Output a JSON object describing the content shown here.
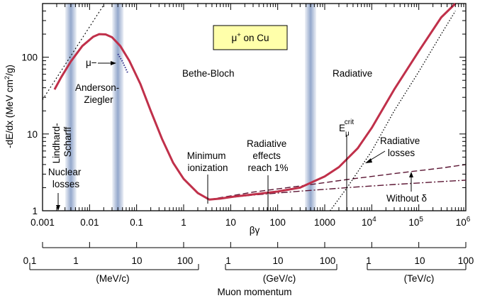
{
  "chart_data": {
    "type": "line",
    "title": "",
    "ylabel_parts": {
      "main": "-dE/dx (MeV cm",
      "sup": "2",
      "tail": "/g)"
    },
    "xlabel": "βγ",
    "xscale": "log",
    "yscale": "log",
    "xlim": [
      0.001,
      1000000
    ],
    "ylim": [
      1,
      500
    ],
    "x_ticks": [
      "0.001",
      "0.01",
      "0.1",
      "1",
      "10",
      "100",
      "1000"
    ],
    "x_ticks_exp": [
      {
        "base": "10",
        "exp": "4"
      },
      {
        "base": "10",
        "exp": "5"
      },
      {
        "base": "10",
        "exp": "6"
      }
    ],
    "y_ticks": [
      "1",
      "10",
      "100"
    ],
    "legend_box": {
      "prefix": "μ",
      "sup": "+",
      "suffix": " on Cu",
      "color": "#ffffaa"
    },
    "shaded_bands_x": [
      0.004,
      0.04,
      500
    ],
    "colors": {
      "main_curve": "#c0304a",
      "band": "#8ea3c9",
      "dashed": "#5a1432",
      "mu_minus": "#2a2a8a"
    },
    "series": [
      {
        "values": [
          [
            0.0018,
            38
          ],
          [
            0.0025,
            55
          ],
          [
            0.004,
            88
          ],
          [
            0.007,
            140
          ],
          [
            0.012,
            185
          ],
          [
            0.016,
            200
          ],
          [
            0.022,
            198
          ],
          [
            0.03,
            182
          ],
          [
            0.045,
            140
          ],
          [
            0.07,
            90
          ],
          [
            0.12,
            45
          ],
          [
            0.2,
            20
          ],
          [
            0.35,
            8.5
          ],
          [
            0.6,
            4.2
          ],
          [
            1,
            2.6
          ],
          [
            2,
            1.7
          ],
          [
            3.5,
            1.4
          ],
          [
            6,
            1.44
          ],
          [
            12,
            1.53
          ],
          [
            30,
            1.63
          ],
          [
            100,
            1.78
          ],
          [
            300,
            2
          ],
          [
            1000,
            2.8
          ],
          [
            2000,
            3.7
          ],
          [
            5000,
            6.5
          ],
          [
            10000,
            12
          ],
          [
            30000,
            38
          ],
          [
            100000,
            120
          ],
          [
            300000,
            330
          ],
          [
            600000,
            560
          ]
        ]
      },
      {
        "name": "Without δ",
        "values": [
          [
            3.5,
            1.4
          ],
          [
            30,
            1.6
          ],
          [
            300,
            1.8
          ],
          [
            3000,
            2.0
          ],
          [
            30000,
            2.2
          ],
          [
            300000,
            2.4
          ],
          [
            1000000,
            2.5
          ]
        ]
      },
      {
        "values": [
          [
            3.5,
            1.4
          ],
          [
            30,
            1.75
          ],
          [
            300,
            2.1
          ],
          [
            3000,
            2.55
          ],
          [
            30000,
            3.05
          ],
          [
            300000,
            3.6
          ],
          [
            1000000,
            4.0
          ]
        ]
      },
      {
        "name": "Radiative losses",
        "values": [
          [
            1300,
            0.9
          ],
          [
            3000,
            2
          ],
          [
            10000,
            6
          ],
          [
            30000,
            20
          ],
          [
            100000,
            65
          ],
          [
            300000,
            200
          ],
          [
            600000,
            400
          ]
        ]
      }
    ],
    "annotations": {
      "nuclear": [
        "Nuclear",
        "losses"
      ],
      "lindhard": [
        "Lindhard-",
        "Scharff"
      ],
      "anderson": [
        "Anderson-",
        "Ziegler"
      ],
      "mu_minus": "μ−",
      "bethe": "Bethe-Bloch",
      "radiative": "Radiative",
      "min_ion": [
        "Minimum",
        "ionization"
      ],
      "rad_effects": [
        "Radiative",
        "effects",
        "reach 1%"
      ],
      "ecrit": {
        "main": "E",
        "sub": "μ",
        "sup": "crit"
      },
      "rad_losses": [
        "Radiative",
        "losses"
      ],
      "without_delta": "Without δ"
    },
    "momentum_axis": {
      "groups": [
        {
          "ticks": [
            "0.1",
            "1",
            "10",
            "100"
          ],
          "unit": "(MeV/c)"
        },
        {
          "ticks": [
            "1",
            "10",
            "100"
          ],
          "unit": "(GeV/c)"
        },
        {
          "ticks": [
            "1",
            "10",
            "100"
          ],
          "unit": "(TeV/c)"
        }
      ],
      "label": "Muon momentum"
    }
  }
}
